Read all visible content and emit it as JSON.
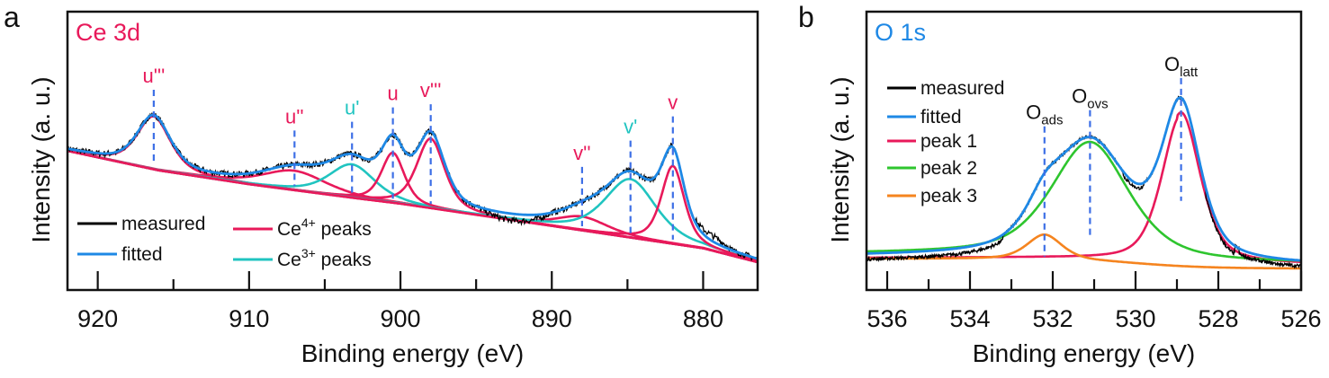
{
  "chart_data": [
    {
      "panel": "a",
      "type": "line",
      "title": "Ce 3d",
      "title_color": "#e8195a",
      "xlabel": "Binding energy (eV)",
      "ylabel": "Intensity (a. u.)",
      "xlim": [
        922,
        876.4
      ],
      "ylim": [
        0,
        1
      ],
      "xticks": [
        920,
        910,
        900,
        890,
        880
      ],
      "xtick_labels": [
        "920",
        "910",
        "900",
        "890",
        "880"
      ],
      "minor_ticks": [
        915,
        905,
        895,
        885
      ],
      "legend": [
        {
          "label": "measured",
          "color": "#000000"
        },
        {
          "label": "fitted",
          "color": "#1e88e5"
        },
        {
          "label": "Ce",
          "sup": "4+",
          "suffix": " peaks",
          "color": "#e8195a"
        },
        {
          "label": "Ce",
          "sup": "3+",
          "suffix": " peaks",
          "color": "#20c4c0"
        }
      ],
      "background": [
        [
          922,
          0.5
        ],
        [
          916,
          0.43
        ],
        [
          910,
          0.38
        ],
        [
          903,
          0.33
        ],
        [
          900,
          0.31
        ],
        [
          895,
          0.27
        ],
        [
          890,
          0.23
        ],
        [
          885,
          0.19
        ],
        [
          880,
          0.15
        ],
        [
          876.4,
          0.1
        ]
      ],
      "peaks": [
        {
          "label": "u'''",
          "center": 916.3,
          "height": 0.19,
          "hwhm": 1.3,
          "state": "Ce4+",
          "color": "#e8195a"
        },
        {
          "label": "u''",
          "center": 907.0,
          "height": 0.07,
          "hwhm": 2.5,
          "state": "Ce4+",
          "color": "#e8195a"
        },
        {
          "label": "u'",
          "center": 903.2,
          "height": 0.12,
          "hwhm": 1.8,
          "state": "Ce3+",
          "color": "#20c4c0"
        },
        {
          "label": "u",
          "center": 900.5,
          "height": 0.18,
          "hwhm": 0.9,
          "state": "Ce4+",
          "color": "#e8195a"
        },
        {
          "label": "v'''",
          "center": 898.0,
          "height": 0.25,
          "hwhm": 1.1,
          "state": "Ce4+",
          "color": "#e8195a"
        },
        {
          "label": "v''",
          "center": 888.0,
          "height": 0.05,
          "hwhm": 2.0,
          "state": "Ce4+",
          "color": "#e8195a"
        },
        {
          "label": "v'",
          "center": 884.8,
          "height": 0.21,
          "hwhm": 2.0,
          "state": "Ce3+",
          "color": "#20c4c0"
        },
        {
          "label": "v",
          "center": 882.0,
          "height": 0.28,
          "hwhm": 0.9,
          "state": "Ce4+",
          "color": "#e8195a"
        }
      ]
    },
    {
      "panel": "b",
      "type": "line",
      "title": "O 1s",
      "title_color": "#1e88e5",
      "xlabel": "Binding energy (eV)",
      "ylabel": "Intensity (a. u.)",
      "xlim": [
        536.5,
        526
      ],
      "ylim": [
        0,
        1
      ],
      "xticks": [
        536,
        534,
        532,
        530,
        528,
        526
      ],
      "xtick_labels": [
        "536",
        "534",
        "532",
        "530",
        "528",
        "526"
      ],
      "minor_ticks": [
        535,
        533,
        531,
        529,
        527
      ],
      "legend": [
        {
          "label": "measured",
          "color": "#000000"
        },
        {
          "label": "fitted",
          "color": "#1e88e5"
        },
        {
          "label": "peak 1",
          "color": "#e8195a"
        },
        {
          "label": "peak 2",
          "color": "#2ec52e"
        },
        {
          "label": "peak 3",
          "color": "#f5841f"
        }
      ],
      "background": {
        "low": 0.085,
        "high": 0.12,
        "step_center": 530
      },
      "peaks": [
        {
          "label": "O",
          "sub": "latt",
          "center": 528.9,
          "height": 0.54,
          "hwhm": 0.55,
          "name": "peak 1",
          "color": "#e8195a"
        },
        {
          "label": "O",
          "sub": "ovs",
          "center": 531.1,
          "height": 0.41,
          "hwhm": 1.1,
          "name": "peak 2",
          "color": "#2ec52e"
        },
        {
          "label": "O",
          "sub": "ads",
          "center": 532.2,
          "height": 0.09,
          "hwhm": 0.5,
          "name": "peak 3",
          "color": "#f5841f"
        }
      ]
    }
  ],
  "panel_letters": [
    "a",
    "b"
  ],
  "colors": {
    "dash": "#3d6fe6",
    "measured": "#000000",
    "fitted": "#1e88e5"
  }
}
